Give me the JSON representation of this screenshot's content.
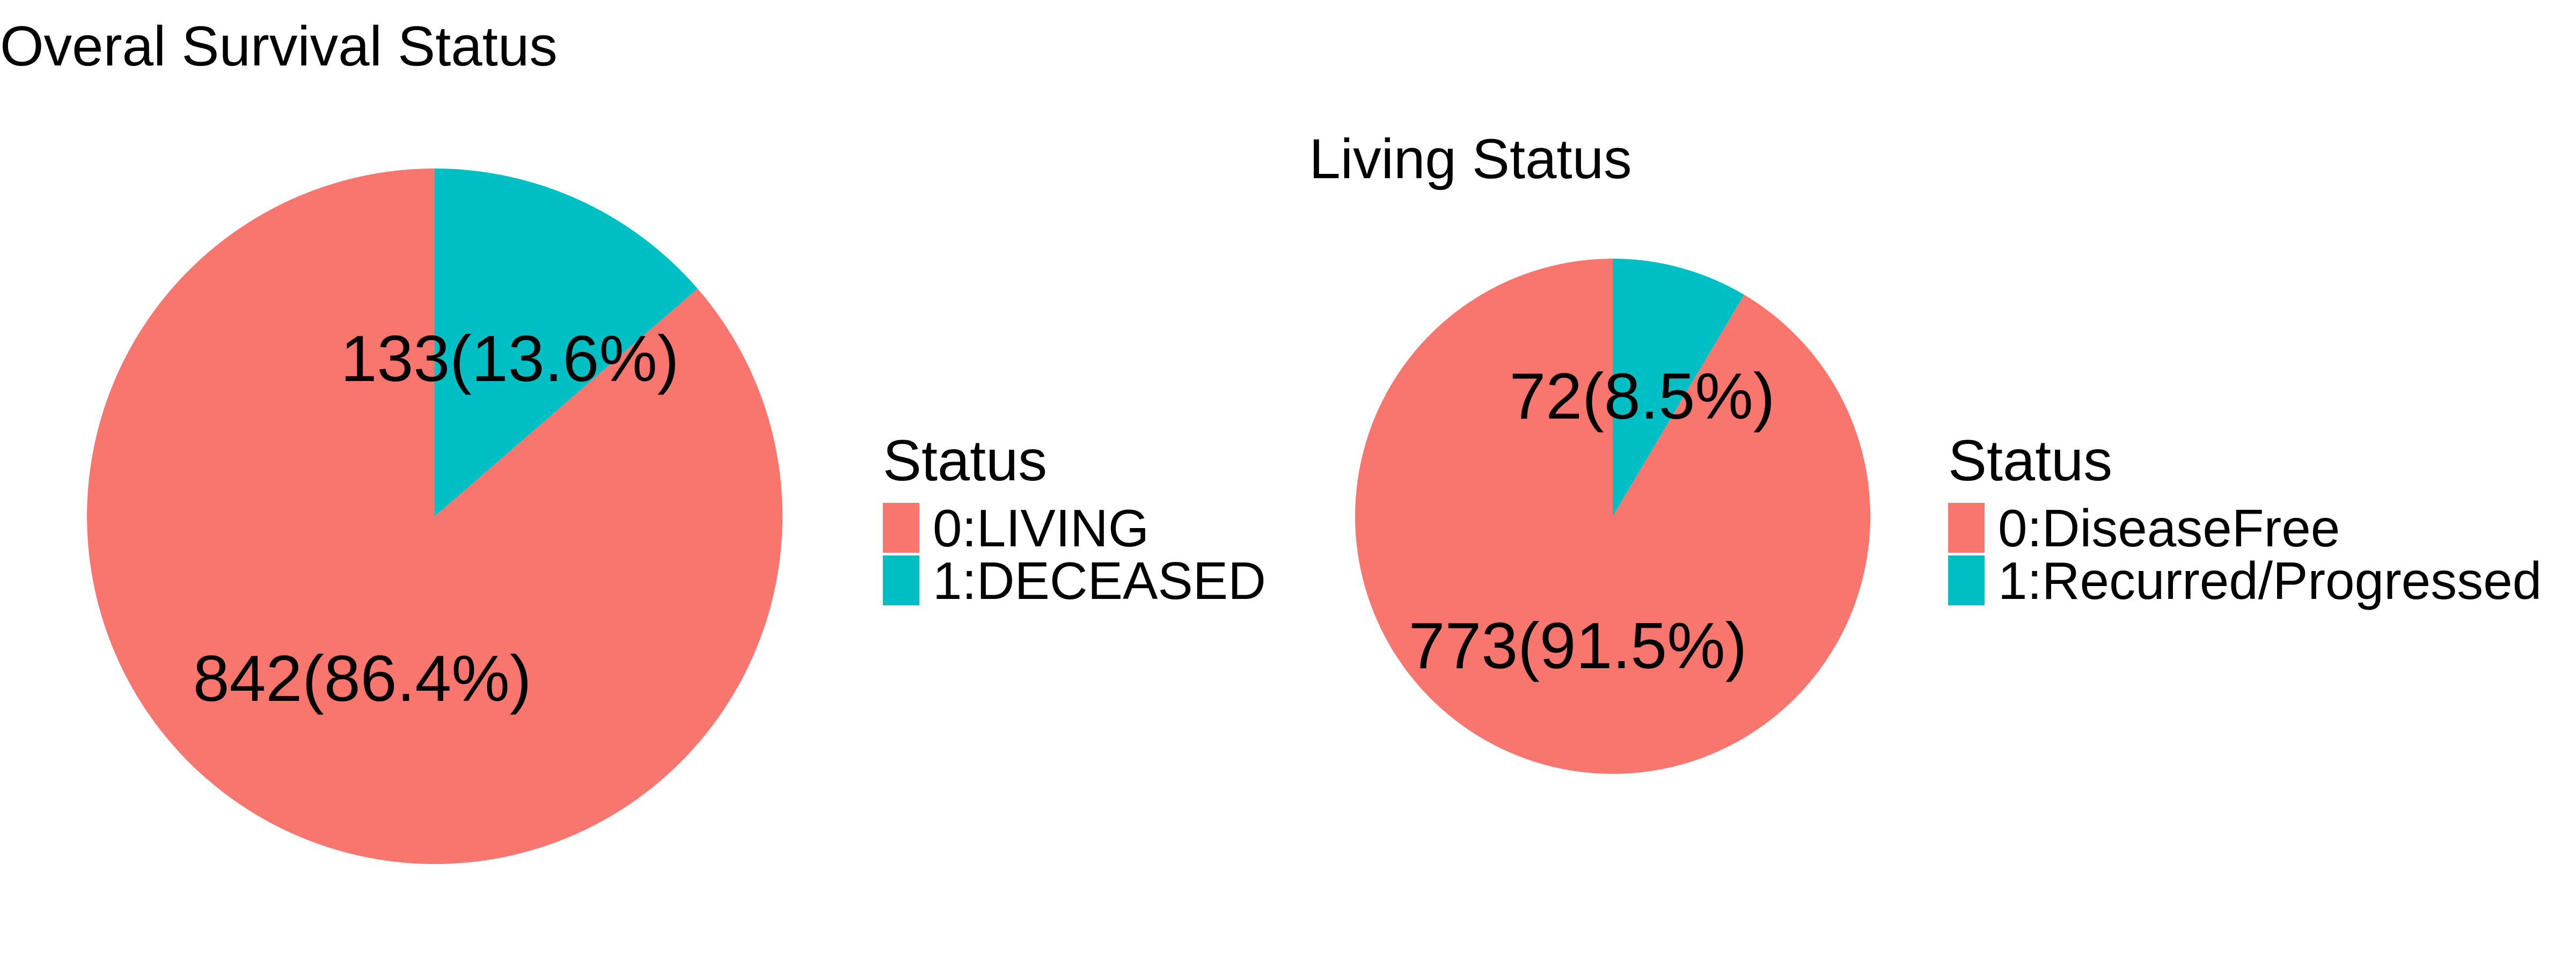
{
  "chart_data": [
    {
      "type": "pie",
      "title": "Overal Survival Status",
      "slices": [
        {
          "label": "0:LIVING",
          "value": 842,
          "display": "842(86.4%)",
          "color": "#F8766D"
        },
        {
          "label": "1:DECEASED",
          "value": 133,
          "display": "133(13.6%)",
          "color": "#00BFC4"
        }
      ],
      "legend": {
        "title": "Status",
        "placement": "right"
      }
    },
    {
      "type": "pie",
      "title": "Living Status",
      "slices": [
        {
          "label": "0:DiseaseFree",
          "value": 773,
          "display": "773(91.5%)",
          "color": "#F8766D"
        },
        {
          "label": "1:Recurred/Progressed",
          "value": 72,
          "display": "72(8.5%)",
          "color": "#00BFC4"
        }
      ],
      "legend": {
        "title": "Status",
        "placement": "right"
      }
    }
  ]
}
